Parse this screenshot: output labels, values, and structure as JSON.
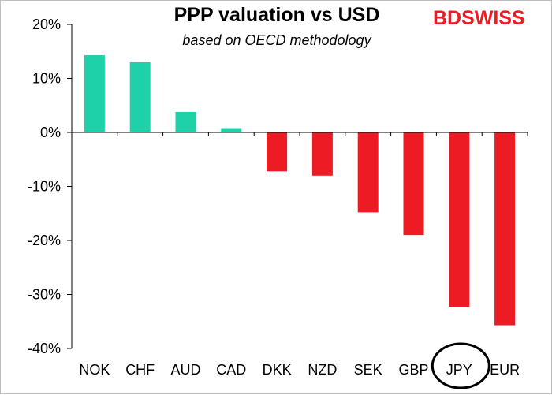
{
  "chart_data": {
    "type": "bar",
    "title": "PPP valuation vs USD",
    "subtitle": "based on OECD methodology",
    "categories": [
      "NOK",
      "CHF",
      "AUD",
      "CAD",
      "DKK",
      "NZD",
      "SEK",
      "GBP",
      "JPY",
      "EUR"
    ],
    "values": [
      14.3,
      13.0,
      3.8,
      0.8,
      -7.2,
      -8.0,
      -14.8,
      -19.0,
      -32.3,
      -35.7
    ],
    "ylim": [
      -40,
      20
    ],
    "yticks": [
      20,
      10,
      0,
      -10,
      -20,
      -30,
      -40
    ],
    "ytick_labels": [
      "20%",
      "10%",
      "0%",
      "-10%",
      "-20%",
      "-30%",
      "-40%"
    ],
    "positive_color": "#1fd1a8",
    "negative_color": "#ed1c24",
    "highlighted_category": "JPY",
    "grid": false
  },
  "logo": {
    "part1": "BD",
    "part2": "SWISS"
  }
}
